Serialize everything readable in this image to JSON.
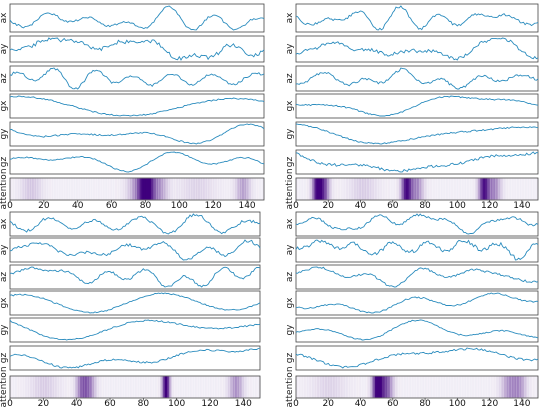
{
  "chart_data": [
    {
      "type": "line",
      "x_range": [
        0,
        150
      ],
      "xticks": [
        0,
        20,
        40,
        60,
        80,
        100,
        120,
        140
      ],
      "series": [
        {
          "name": "ax",
          "key": "ax1"
        },
        {
          "name": "ay",
          "key": "ay1"
        },
        {
          "name": "az",
          "key": "az1"
        },
        {
          "name": "gx",
          "key": "gx1"
        },
        {
          "name": "gy",
          "key": "gy1"
        },
        {
          "name": "gz",
          "key": "gz1"
        }
      ],
      "attention_label": "attention",
      "attention_peaks": [
        {
          "center": 80,
          "width": 4,
          "strength": 1.0
        },
        {
          "center": 76,
          "width": 6,
          "strength": 0.35
        },
        {
          "center": 87,
          "width": 5,
          "strength": 0.3
        },
        {
          "center": 137,
          "width": 4,
          "strength": 0.25
        },
        {
          "center": 12,
          "width": 6,
          "strength": 0.12
        },
        {
          "center": 110,
          "width": 10,
          "strength": 0.08
        }
      ]
    },
    {
      "type": "line",
      "x_range": [
        0,
        150
      ],
      "xticks": [
        0,
        20,
        40,
        60,
        80,
        100,
        120,
        140
      ],
      "series": [
        {
          "name": "ax",
          "key": "ax2"
        },
        {
          "name": "ay",
          "key": "ay2"
        },
        {
          "name": "az",
          "key": "az2"
        },
        {
          "name": "gx",
          "key": "gx2"
        },
        {
          "name": "gy",
          "key": "gy2"
        },
        {
          "name": "gz",
          "key": "gz2"
        }
      ],
      "attention_label": "attention",
      "attention_peaks": [
        {
          "center": 13,
          "width": 3,
          "strength": 1.0
        },
        {
          "center": 17,
          "width": 3,
          "strength": 0.5
        },
        {
          "center": 68,
          "width": 3,
          "strength": 0.9
        },
        {
          "center": 74,
          "width": 4,
          "strength": 0.35
        },
        {
          "center": 116,
          "width": 3,
          "strength": 0.85
        },
        {
          "center": 122,
          "width": 4,
          "strength": 0.35
        },
        {
          "center": 41,
          "width": 8,
          "strength": 0.1
        }
      ]
    },
    {
      "type": "line",
      "x_range": [
        0,
        150
      ],
      "xticks": [
        0,
        20,
        40,
        60,
        80,
        100,
        120,
        140
      ],
      "series": [
        {
          "name": "ax",
          "key": "ax3"
        },
        {
          "name": "ay",
          "key": "ay3"
        },
        {
          "name": "az",
          "key": "az3"
        },
        {
          "name": "gx",
          "key": "gx3"
        },
        {
          "name": "gy",
          "key": "gy3"
        },
        {
          "name": "gz",
          "key": "gz3"
        }
      ],
      "attention_label": "attention",
      "attention_peaks": [
        {
          "center": 93,
          "width": 2,
          "strength": 1.0
        },
        {
          "center": 46,
          "width": 4,
          "strength": 0.45
        },
        {
          "center": 42,
          "width": 3,
          "strength": 0.3
        },
        {
          "center": 135,
          "width": 4,
          "strength": 0.3
        },
        {
          "center": 20,
          "width": 8,
          "strength": 0.1
        }
      ]
    },
    {
      "type": "line",
      "x_range": [
        0,
        150
      ],
      "xticks": [
        0,
        20,
        40,
        60,
        80,
        100,
        120,
        140
      ],
      "series": [
        {
          "name": "ax",
          "key": "ax4"
        },
        {
          "name": "ay",
          "key": "ay4"
        },
        {
          "name": "az",
          "key": "az4"
        },
        {
          "name": "gx",
          "key": "gx4"
        },
        {
          "name": "gy",
          "key": "gy4"
        },
        {
          "name": "gz",
          "key": "gz4"
        }
      ],
      "attention_label": "attention",
      "attention_peaks": [
        {
          "center": 50,
          "width": 3,
          "strength": 1.0
        },
        {
          "center": 55,
          "width": 4,
          "strength": 0.55
        },
        {
          "center": 132,
          "width": 5,
          "strength": 0.3
        },
        {
          "center": 138,
          "width": 4,
          "strength": 0.25
        },
        {
          "center": 20,
          "width": 10,
          "strength": 0.08
        }
      ]
    }
  ],
  "style": {
    "line_color": "#2b8cbe",
    "frame_color": "#444444",
    "attention_color": "#3f007d"
  }
}
